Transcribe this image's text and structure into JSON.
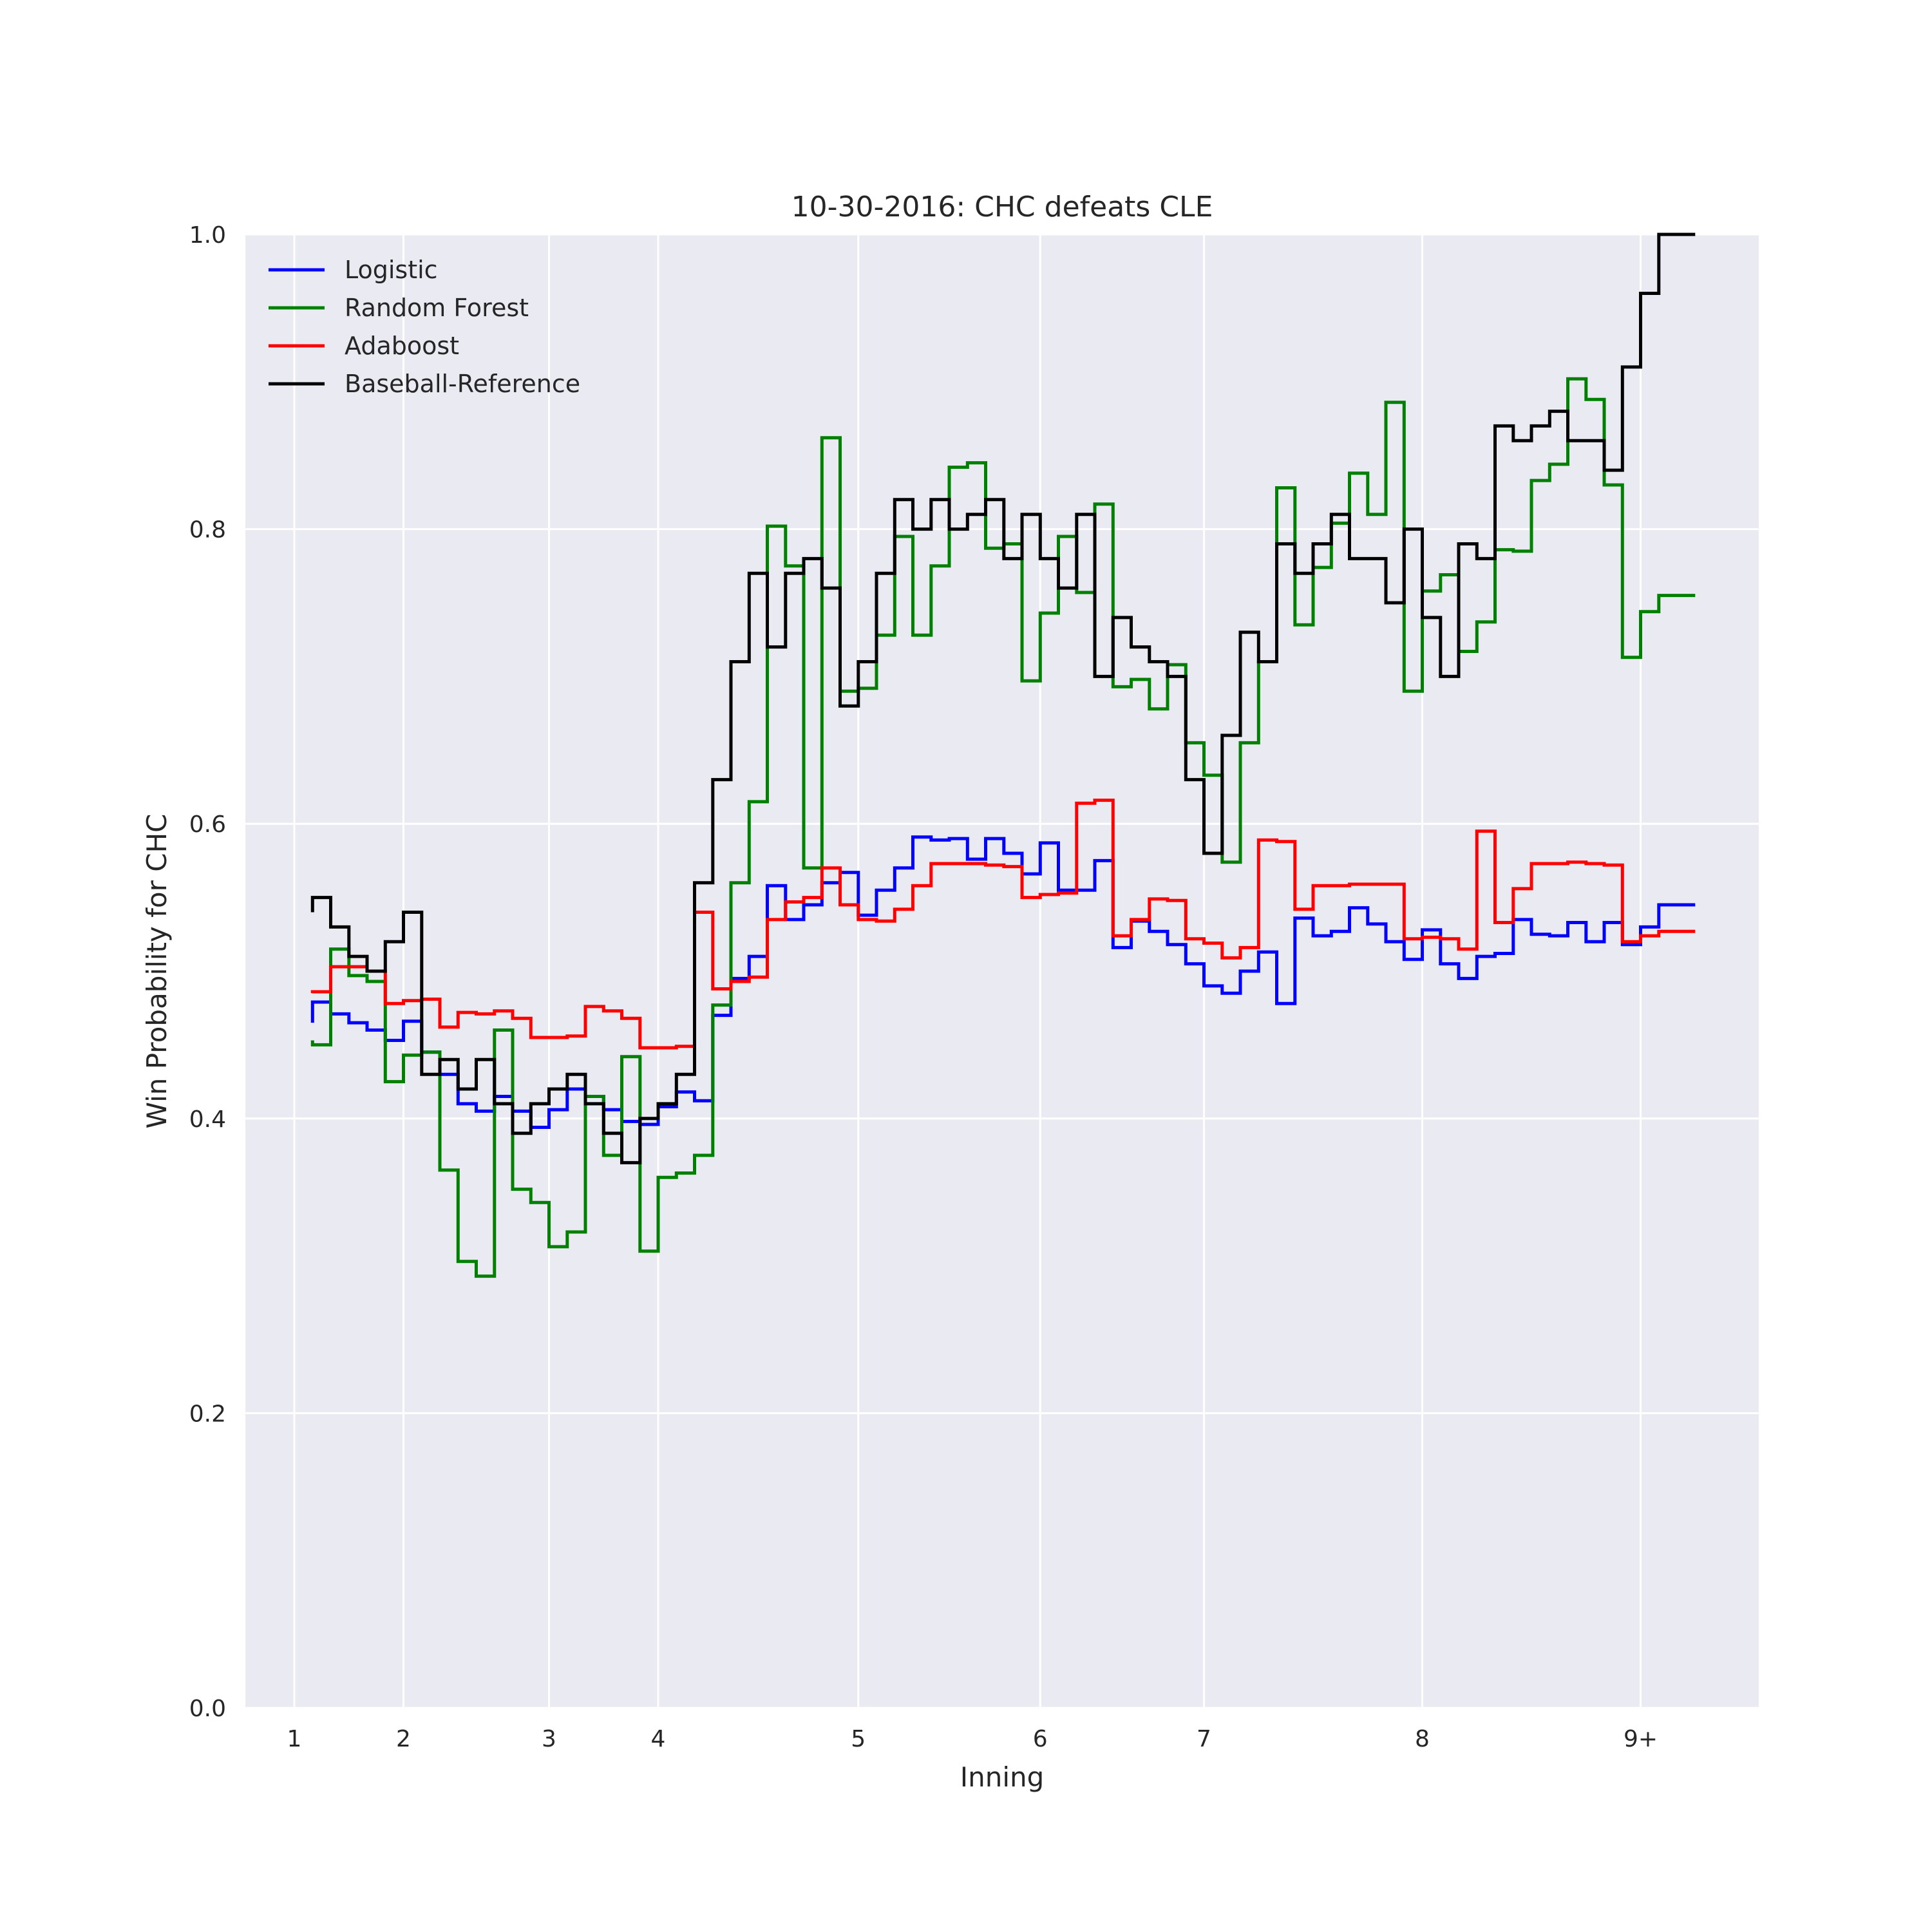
{
  "chart_data": {
    "type": "line",
    "title": "10-30-2016: CHC defeats CLE",
    "xlabel": "Inning",
    "ylabel": "Win Probability for CHC",
    "ylim": [
      0,
      1
    ],
    "yticks": [
      "0.0",
      "0.2",
      "0.4",
      "0.6",
      "0.8",
      "1.0"
    ],
    "xlim": [
      0,
      80
    ],
    "xticks": [
      {
        "label": "1",
        "x": 0
      },
      {
        "label": "2",
        "x": 6
      },
      {
        "label": "3",
        "x": 14
      },
      {
        "label": "4",
        "x": 20
      },
      {
        "label": "5",
        "x": 31
      },
      {
        "label": "6",
        "x": 41
      },
      {
        "label": "7",
        "x": 50
      },
      {
        "label": "8",
        "x": 62
      },
      {
        "label": "9+",
        "x": 74
      }
    ],
    "grid": true,
    "legend_position": "top-left",
    "step": true,
    "x": [
      1,
      2,
      3,
      4,
      5,
      6,
      7,
      8,
      9,
      10,
      11,
      12,
      13,
      14,
      15,
      16,
      17,
      18,
      19,
      20,
      21,
      22,
      23,
      24,
      25,
      26,
      27,
      28,
      29,
      30,
      31,
      32,
      33,
      34,
      35,
      36,
      37,
      38,
      39,
      40,
      41,
      42,
      43,
      44,
      45,
      46,
      47,
      48,
      49,
      50,
      51,
      52,
      53,
      54,
      55,
      56,
      57,
      58,
      59,
      60,
      61,
      62,
      63,
      64,
      65,
      66,
      67,
      68,
      69,
      70,
      71,
      72,
      73,
      74,
      75,
      76,
      77
    ],
    "series": [
      {
        "name": "Logistic",
        "color": "#0000ff",
        "values": [
          0.465,
          0.479,
          0.471,
          0.465,
          0.46,
          0.453,
          0.466,
          0.445,
          0.43,
          0.41,
          0.405,
          0.415,
          0.405,
          0.394,
          0.406,
          0.42,
          0.415,
          0.406,
          0.398,
          0.396,
          0.408,
          0.418,
          0.412,
          0.47,
          0.495,
          0.51,
          0.558,
          0.535,
          0.545,
          0.56,
          0.567,
          0.538,
          0.555,
          0.57,
          0.591,
          0.589,
          0.59,
          0.576,
          0.59,
          0.58,
          0.566,
          0.587,
          0.555,
          0.555,
          0.575,
          0.516,
          0.534,
          0.527,
          0.518,
          0.505,
          0.49,
          0.485,
          0.5,
          0.513,
          0.478,
          0.536,
          0.524,
          0.527,
          0.543,
          0.532,
          0.52,
          0.508,
          0.528,
          0.505,
          0.495,
          0.51,
          0.512,
          0.535,
          0.525,
          0.524,
          0.533,
          0.52,
          0.533,
          0.518,
          0.53,
          0.545,
          0.545
        ]
      },
      {
        "name": "Random Forest",
        "color": "#008000",
        "values": [
          0.453,
          0.45,
          0.515,
          0.497,
          0.493,
          0.425,
          0.443,
          0.445,
          0.365,
          0.303,
          0.293,
          0.46,
          0.352,
          0.343,
          0.313,
          0.323,
          0.415,
          0.375,
          0.442,
          0.31,
          0.36,
          0.363,
          0.375,
          0.477,
          0.56,
          0.615,
          0.802,
          0.775,
          0.57,
          0.862,
          0.69,
          0.692,
          0.728,
          0.795,
          0.728,
          0.775,
          0.842,
          0.845,
          0.787,
          0.79,
          0.697,
          0.743,
          0.795,
          0.757,
          0.817,
          0.693,
          0.698,
          0.678,
          0.708,
          0.655,
          0.633,
          0.574,
          0.655,
          0.71,
          0.828,
          0.735,
          0.774,
          0.804,
          0.838,
          0.81,
          0.886,
          0.69,
          0.758,
          0.769,
          0.717,
          0.737,
          0.786,
          0.785,
          0.833,
          0.844,
          0.902,
          0.888,
          0.83,
          0.713,
          0.744,
          0.755,
          0.755
        ]
      },
      {
        "name": "Adaboost",
        "color": "#ff0000",
        "values": [
          0.485,
          0.486,
          0.503,
          0.503,
          0.5,
          0.478,
          0.48,
          0.481,
          0.462,
          0.472,
          0.471,
          0.473,
          0.468,
          0.455,
          0.455,
          0.456,
          0.476,
          0.473,
          0.468,
          0.448,
          0.448,
          0.449,
          0.54,
          0.488,
          0.493,
          0.496,
          0.535,
          0.547,
          0.55,
          0.57,
          0.545,
          0.535,
          0.534,
          0.542,
          0.558,
          0.573,
          0.573,
          0.573,
          0.572,
          0.571,
          0.55,
          0.552,
          0.553,
          0.614,
          0.616,
          0.524,
          0.535,
          0.549,
          0.548,
          0.522,
          0.519,
          0.509,
          0.516,
          0.589,
          0.588,
          0.542,
          0.558,
          0.558,
          0.559,
          0.559,
          0.559,
          0.522,
          0.523,
          0.522,
          0.515,
          0.595,
          0.533,
          0.556,
          0.573,
          0.573,
          0.574,
          0.573,
          0.572,
          0.52,
          0.524,
          0.527,
          0.527
        ]
      },
      {
        "name": "Baseball-Reference",
        "color": "#000000",
        "values": [
          0.54,
          0.55,
          0.53,
          0.51,
          0.5,
          0.52,
          0.54,
          0.43,
          0.44,
          0.42,
          0.44,
          0.41,
          0.39,
          0.41,
          0.42,
          0.43,
          0.41,
          0.39,
          0.37,
          0.4,
          0.41,
          0.43,
          0.56,
          0.63,
          0.71,
          0.77,
          0.72,
          0.77,
          0.78,
          0.76,
          0.68,
          0.71,
          0.77,
          0.82,
          0.8,
          0.82,
          0.8,
          0.81,
          0.82,
          0.78,
          0.81,
          0.78,
          0.76,
          0.81,
          0.7,
          0.74,
          0.72,
          0.71,
          0.7,
          0.63,
          0.58,
          0.66,
          0.73,
          0.71,
          0.79,
          0.77,
          0.79,
          0.81,
          0.78,
          0.78,
          0.75,
          0.8,
          0.74,
          0.7,
          0.79,
          0.78,
          0.87,
          0.86,
          0.87,
          0.88,
          0.86,
          0.86,
          0.84,
          0.91,
          0.96,
          1.0,
          1.0
        ]
      }
    ]
  }
}
